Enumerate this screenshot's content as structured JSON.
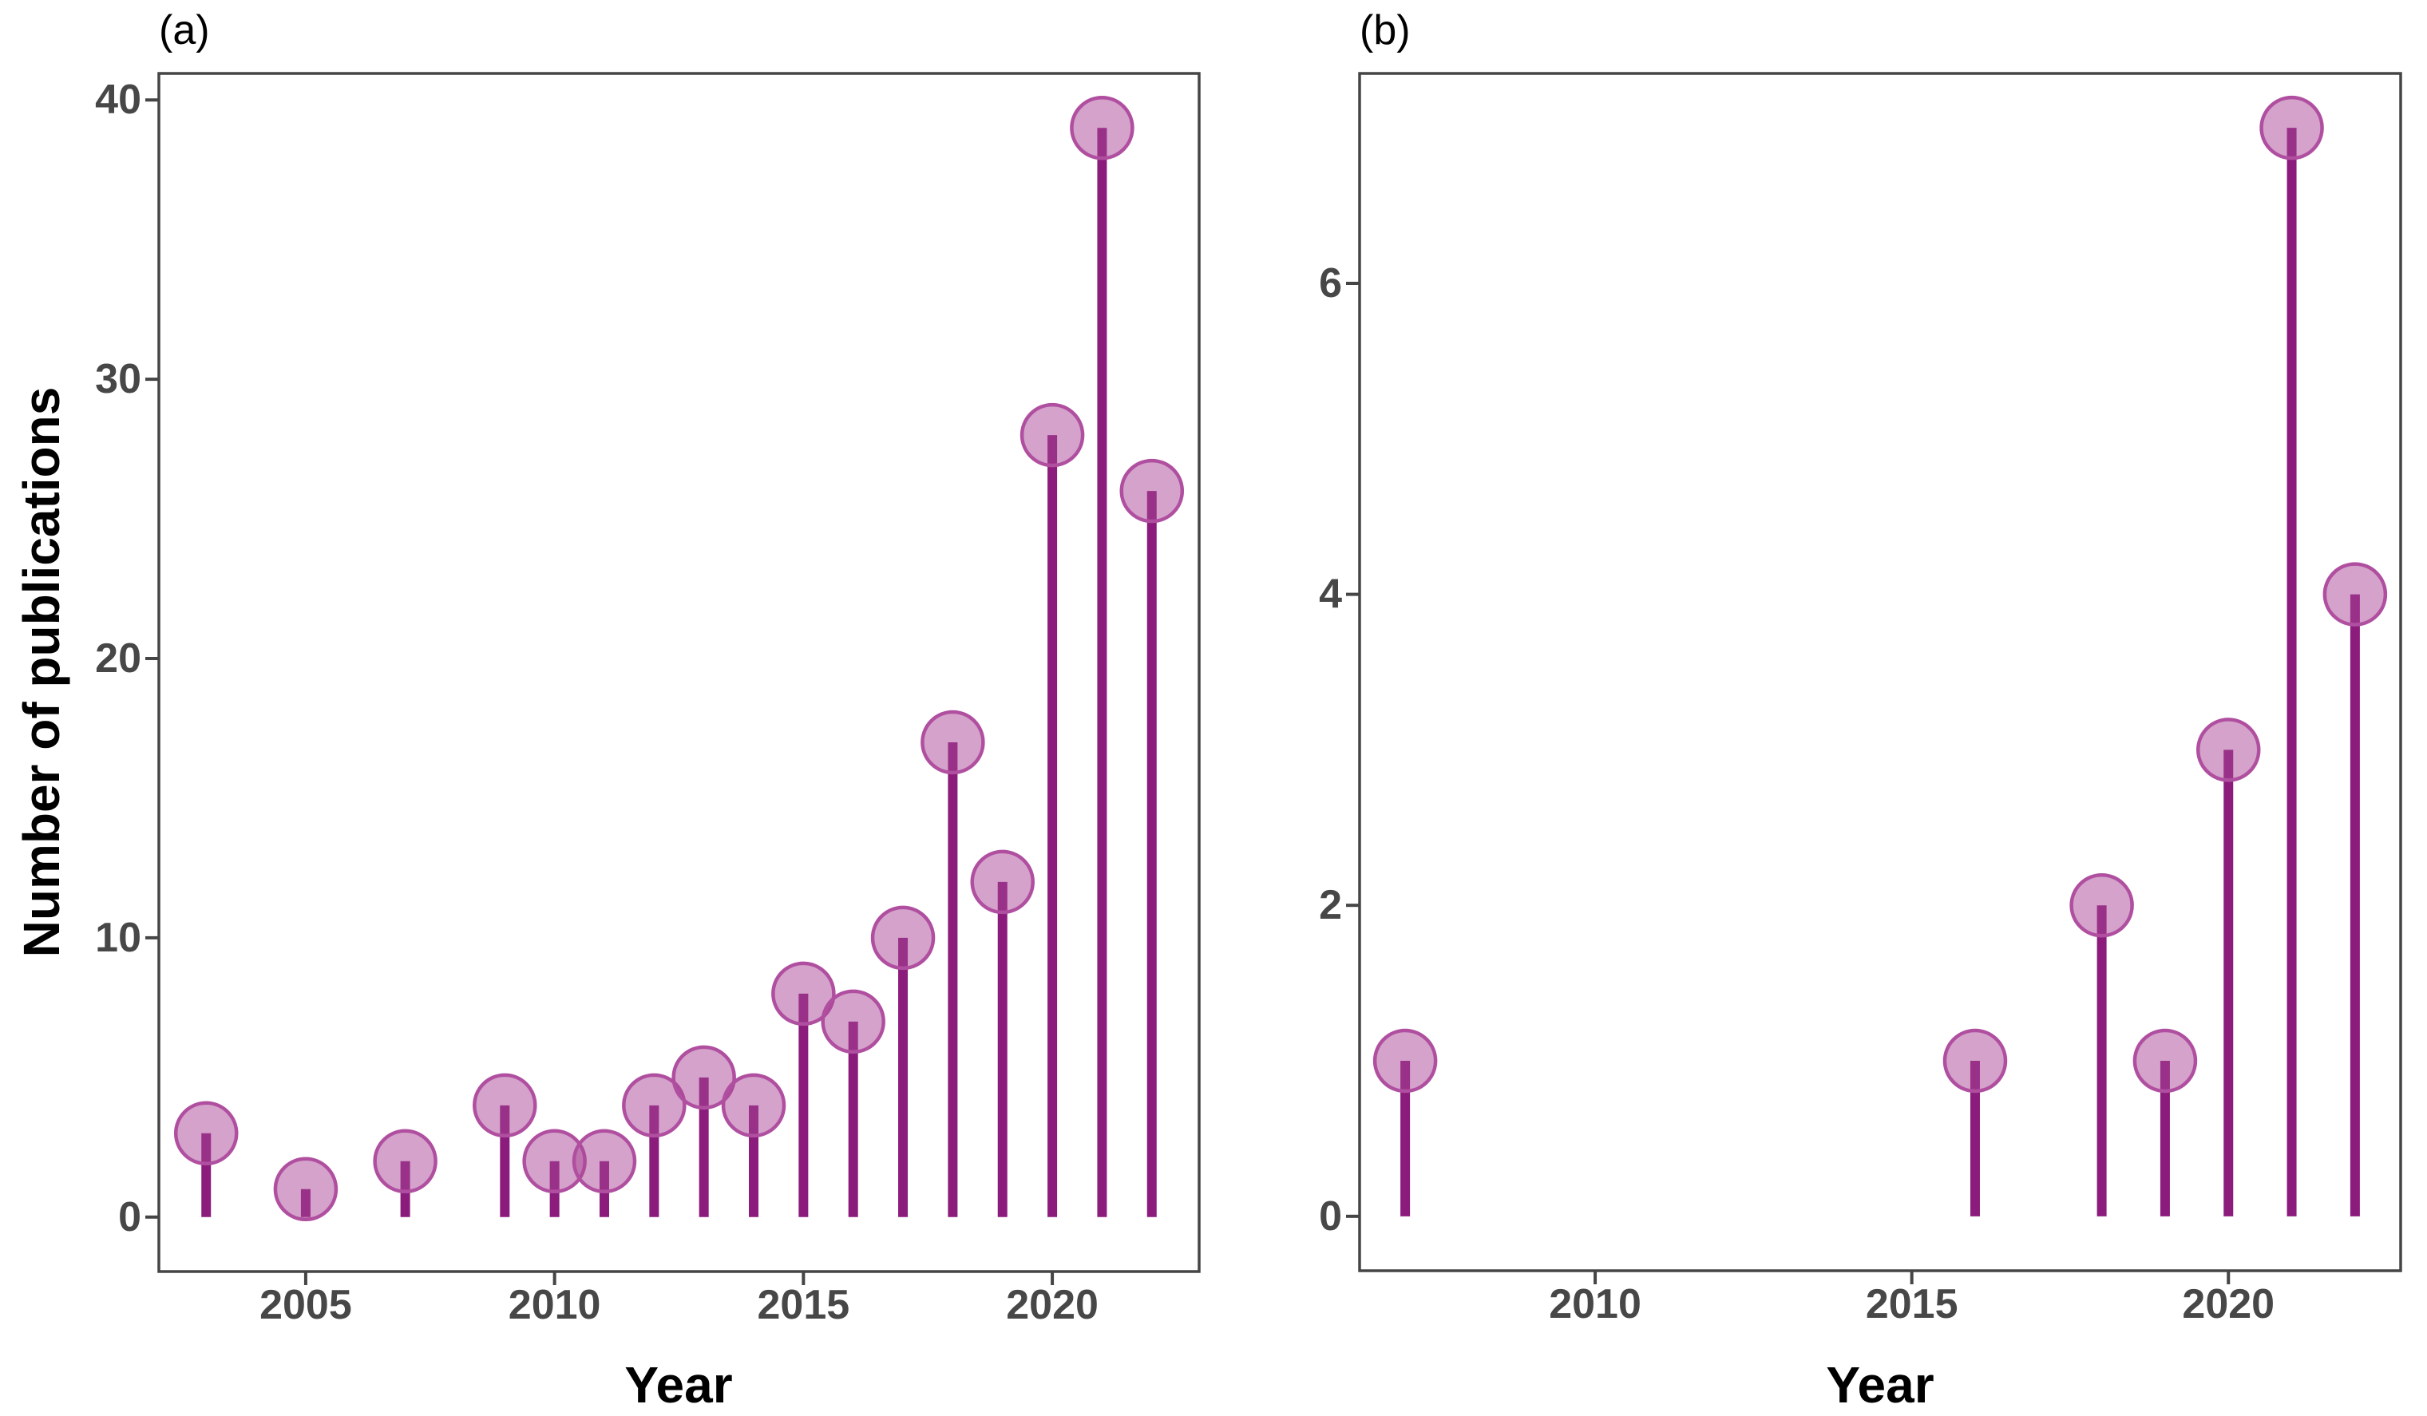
{
  "figure_background": "#ffffff",
  "colors": {
    "stem": "#8b1c7c",
    "point_fill_rgba": "rgba(170,70,150,0.5)",
    "point_stroke": "#b04fa0",
    "axis_line": "#454545",
    "tick_text": "#474747",
    "title_text": "#000000"
  },
  "chart_data": [
    {
      "type": "bar",
      "style": "lollipop",
      "tag": "(a)",
      "title": "",
      "xlabel": "Year",
      "ylabel": "Number of publications",
      "x": [
        2003,
        2005,
        2007,
        2009,
        2010,
        2011,
        2012,
        2013,
        2014,
        2015,
        2016,
        2017,
        2018,
        2019,
        2020,
        2021,
        2022
      ],
      "values": [
        3,
        1,
        2,
        4,
        2,
        2,
        4,
        5,
        4,
        8,
        7,
        10,
        17,
        12,
        28,
        39,
        26
      ],
      "x_ticks": [
        2005,
        2010,
        2015,
        2020
      ],
      "y_ticks": [
        0,
        10,
        20,
        30,
        40
      ],
      "xlim": [
        2002.05,
        2022.95
      ],
      "ylim": [
        -1.95,
        40.95
      ],
      "grid": false,
      "legend": false
    },
    {
      "type": "bar",
      "style": "lollipop",
      "tag": "(b)",
      "title": "",
      "xlabel": "Year",
      "ylabel": "",
      "x": [
        2007,
        2016,
        2018,
        2019,
        2020,
        2021,
        2022
      ],
      "values": [
        1,
        1,
        2,
        1,
        3,
        7,
        4
      ],
      "x_ticks": [
        2010,
        2015,
        2020
      ],
      "y_ticks": [
        0,
        2,
        4,
        6
      ],
      "xlim": [
        2006.28,
        2022.72
      ],
      "ylim": [
        -0.35,
        7.35
      ],
      "grid": false,
      "legend": false
    }
  ]
}
